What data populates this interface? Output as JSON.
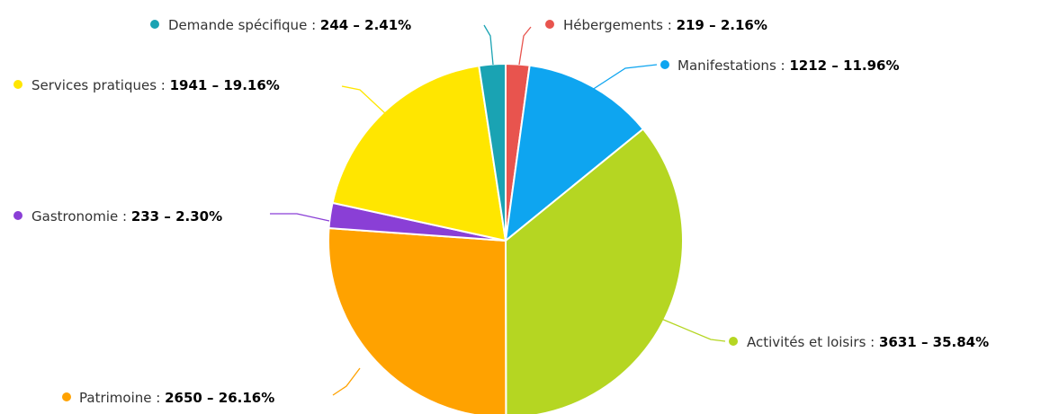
{
  "chart_data": {
    "type": "pie",
    "slices": [
      {
        "name": "Hébergements",
        "value_label": "219 – 2.16%",
        "value": 219,
        "percent": 2.16,
        "color": "#e8544e"
      },
      {
        "name": "Manifestations",
        "value_label": "1212 – 11.96%",
        "value": 1212,
        "percent": 11.96,
        "color": "#0ea5f0"
      },
      {
        "name": "Activités et loisirs",
        "value_label": "3631 – 35.84%",
        "value": 3631,
        "percent": 35.84,
        "color": "#b5d622"
      },
      {
        "name": "Patrimoine",
        "value_label": "2650 – 26.16%",
        "value": 2650,
        "percent": 26.16,
        "color": "#ffa200"
      },
      {
        "name": "Gastronomie",
        "value_label": "233 – 2.30%",
        "value": 233,
        "percent": 2.3,
        "color": "#8a3fd6"
      },
      {
        "name": "Services pratiques",
        "value_label": "1941 – 19.16%",
        "value": 1941,
        "percent": 19.16,
        "color": "#ffe600"
      },
      {
        "name": "Demande spécifique",
        "value_label": "244 – 2.41%",
        "value": 244,
        "percent": 2.41,
        "color": "#1aa3b3"
      }
    ],
    "start_angle": "top",
    "direction": "clockwise"
  }
}
